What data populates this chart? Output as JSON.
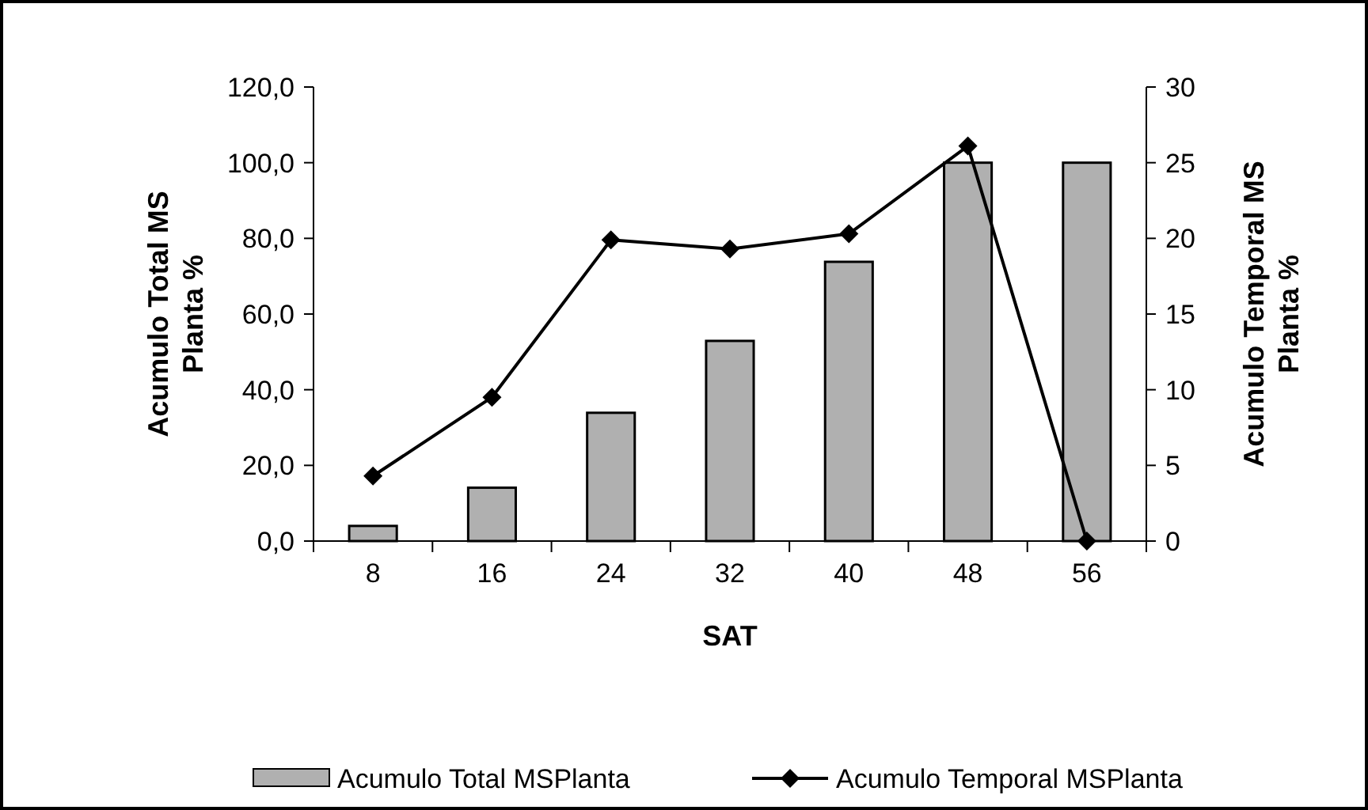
{
  "chart_data": {
    "type": "bar",
    "xlabel": "SAT",
    "ylabel": "Acumulo Total MS Planta %",
    "y2label": "Acumulo Temporal MS Planta %",
    "categories": [
      "8",
      "16",
      "24",
      "32",
      "40",
      "48",
      "56"
    ],
    "series": [
      {
        "name": "Acumulo Total MSPlanta",
        "color": "#b0b0b0",
        "values": [
          4.0,
          14.1,
          33.9,
          52.9,
          73.8,
          100,
          100
        ]
      },
      {
        "name": "Acumulo Temporal MSPlanta",
        "type": "line",
        "axis": "y2",
        "color": "#000000",
        "marker": "diamond",
        "values": [
          4.3,
          9.5,
          19.9,
          19.3,
          20.3,
          26.1,
          0
        ]
      }
    ],
    "ylim": [
      0,
      120
    ],
    "yticks": [
      {
        "value": 0,
        "label": "0,0"
      },
      {
        "value": 20,
        "label": "20,0"
      },
      {
        "value": 40,
        "label": "40,0"
      },
      {
        "value": 60,
        "label": "60,0"
      },
      {
        "value": 80,
        "label": "80,0"
      },
      {
        "value": 100,
        "label": "100,0"
      },
      {
        "value": 120,
        "label": "120,0"
      }
    ],
    "y2lim": [
      0,
      30
    ],
    "y2ticks": [
      0,
      5,
      10,
      15,
      20,
      25,
      30
    ],
    "legend": "bottom",
    "grid": false
  }
}
